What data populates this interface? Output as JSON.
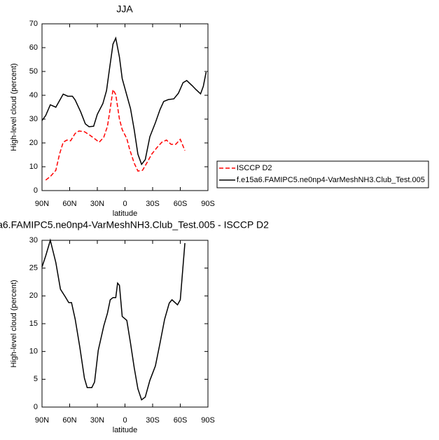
{
  "chart_data": [
    {
      "type": "line",
      "title": "JJA",
      "xlabel": "latitude",
      "ylabel": "High-level cloud (percent)",
      "xlim": [
        90,
        -90
      ],
      "xticks": [
        {
          "value": 90,
          "label": "90N"
        },
        {
          "value": 60,
          "label": "60N"
        },
        {
          "value": 30,
          "label": "30N"
        },
        0,
        {
          "value": -30,
          "label": "30S"
        },
        {
          "value": -60,
          "label": "60S"
        },
        {
          "value": -90,
          "label": "90S"
        }
      ],
      "ylim": [
        0,
        70
      ],
      "yticks": [
        0,
        10,
        20,
        30,
        40,
        50,
        60,
        70
      ],
      "legend": "right",
      "series": [
        {
          "name": "ISCCP D2",
          "color": "#ff0000",
          "dash": true,
          "x": [
            86,
            81,
            75,
            71,
            67,
            63,
            59,
            54,
            50,
            44,
            39,
            33,
            28,
            23,
            19,
            16,
            13,
            10,
            6,
            3,
            -2,
            -5,
            -10,
            -14,
            -19,
            -24,
            -29,
            -35,
            -40,
            -45,
            -50,
            -55,
            -60,
            -65
          ],
          "values": [
            4.4,
            5.9,
            8.5,
            15.3,
            20.3,
            21.2,
            20.9,
            24,
            25,
            24.7,
            23.5,
            21.8,
            20.3,
            22.4,
            27,
            34.4,
            42.4,
            40.3,
            30,
            25.6,
            21.8,
            17.4,
            11.5,
            8.2,
            8.5,
            11.8,
            15.3,
            18.2,
            20.3,
            21.2,
            19.4,
            19.4,
            21.5,
            16.8
          ]
        },
        {
          "name": "f.e15a6.FAMIPC5.ne0np4-VarMeshNH3.Club_Test.005",
          "color": "#000000",
          "dash": false,
          "x": [
            90,
            86,
            81,
            75,
            67,
            62,
            57,
            54,
            48,
            43,
            39,
            34,
            30,
            24,
            20,
            17,
            13,
            10,
            6,
            3,
            -2,
            -6,
            -10,
            -14,
            -18,
            -22,
            -27,
            -33,
            -38,
            -42,
            -47,
            -53,
            -58,
            -63,
            -67,
            -73,
            -77,
            -82,
            -85,
            -88
          ],
          "values": [
            29.4,
            31.5,
            36,
            35,
            40.5,
            39.6,
            39.6,
            38,
            33,
            28,
            26.8,
            27,
            32,
            36.5,
            42,
            50.5,
            61.5,
            64,
            56,
            47,
            40,
            34.4,
            25.6,
            15.3,
            11,
            13,
            22.6,
            28.5,
            34,
            37.4,
            38.2,
            38.5,
            40.9,
            45.3,
            46.2,
            44,
            42.4,
            40.6,
            43.8,
            49.7
          ]
        }
      ]
    },
    {
      "type": "line",
      "title": "a6.FAMIPC5.ne0np4-VarMeshNH3.Club_Test.005 - ISCCP D2",
      "xlabel": "latitude",
      "ylabel": "High-level cloud (percent)",
      "xlim": [
        90,
        -90
      ],
      "xticks": [
        {
          "value": 90,
          "label": "90N"
        },
        {
          "value": 60,
          "label": "60N"
        },
        {
          "value": 30,
          "label": "30N"
        },
        0,
        {
          "value": -30,
          "label": "30S"
        },
        {
          "value": -60,
          "label": "60S"
        },
        {
          "value": -90,
          "label": "90S"
        }
      ],
      "ylim": [
        0,
        30
      ],
      "yticks": [
        0,
        5,
        10,
        15,
        20,
        25,
        30
      ],
      "series": [
        {
          "color": "#000000",
          "dash": false,
          "x": [
            90,
            86,
            81,
            75,
            70,
            65,
            61,
            58,
            54,
            49,
            44,
            41,
            36,
            33,
            29,
            23,
            19,
            16,
            13,
            10,
            8,
            6,
            3,
            -2,
            -6,
            -10,
            -14,
            -18,
            -22,
            -27,
            -33,
            -38,
            -43,
            -48,
            -51,
            -57,
            -60,
            -65
          ],
          "values": [
            25.2,
            27.2,
            30,
            26,
            21.2,
            19.9,
            18.8,
            18.8,
            15.8,
            10.8,
            5.2,
            3.5,
            3.5,
            4.5,
            10.2,
            14.6,
            16.9,
            19.3,
            19.7,
            19.7,
            22.3,
            21.9,
            16.3,
            15.6,
            11.5,
            7.1,
            3.3,
            1.3,
            1.8,
            4.8,
            7.4,
            11.5,
            15.8,
            18.7,
            19.3,
            18.4,
            19.3,
            29.5
          ]
        }
      ]
    }
  ]
}
